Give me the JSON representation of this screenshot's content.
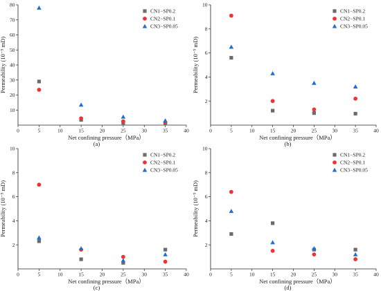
{
  "chart_data": [
    {
      "type": "scatter",
      "panel_label": "(a)",
      "xlabel": "Net confining pressure（MPa）",
      "ylabel": "Permeability (10⁻⁵ mD)",
      "xlim": [
        0,
        40
      ],
      "ylim": [
        0,
        80
      ],
      "xticks": [
        0,
        5,
        10,
        15,
        20,
        25,
        30,
        35,
        40
      ],
      "yticks": [
        10,
        20,
        30,
        40,
        50,
        60,
        70,
        80
      ],
      "legend_position": "top-right",
      "series": [
        {
          "name": "CN1−SP0.2",
          "color": "#6b6b6b",
          "marker": "square",
          "x": [
            5,
            15,
            25,
            35
          ],
          "y": [
            29,
            3.5,
            1.5,
            1.0
          ]
        },
        {
          "name": "CN2−SP0.1",
          "color": "#ee3333",
          "marker": "circle",
          "x": [
            5,
            15,
            25,
            35
          ],
          "y": [
            23.5,
            4.5,
            2.5,
            1.8
          ]
        },
        {
          "name": "CN3−SP0.05",
          "color": "#1f6fd1",
          "marker": "triangle",
          "x": [
            5,
            15,
            25,
            35
          ],
          "y": [
            78,
            13.5,
            5.5,
            3.0
          ]
        }
      ]
    },
    {
      "type": "scatter",
      "panel_label": "(b)",
      "xlabel": "Net confining pressure（MPa）",
      "ylabel": "Permeability (10⁻⁵ mD)",
      "xlim": [
        0,
        40
      ],
      "ylim": [
        0,
        10
      ],
      "xticks": [
        0,
        5,
        10,
        15,
        20,
        25,
        30,
        35,
        40
      ],
      "yticks": [
        2,
        4,
        6,
        8,
        10
      ],
      "legend_position": "top-right",
      "series": [
        {
          "name": "CN1−SP0.2",
          "color": "#6b6b6b",
          "marker": "square",
          "x": [
            5,
            15,
            25,
            35
          ],
          "y": [
            5.6,
            1.2,
            1.0,
            0.95
          ]
        },
        {
          "name": "CN2−SP0.1",
          "color": "#ee3333",
          "marker": "circle",
          "x": [
            5,
            15,
            25,
            35
          ],
          "y": [
            9.1,
            2.0,
            1.3,
            2.2
          ]
        },
        {
          "name": "CN3−SP0.05",
          "color": "#1f6fd1",
          "marker": "triangle",
          "x": [
            5,
            15,
            25,
            35
          ],
          "y": [
            6.5,
            4.3,
            3.5,
            3.2
          ]
        }
      ]
    },
    {
      "type": "scatter",
      "panel_label": "(c)",
      "xlabel": "Net confining pressure（MPa）",
      "ylabel": "Permeability (10⁻⁵ mD)",
      "xlim": [
        0,
        40
      ],
      "ylim": [
        0,
        10
      ],
      "xticks": [
        0,
        5,
        10,
        15,
        20,
        25,
        30,
        35,
        40
      ],
      "yticks": [
        2,
        4,
        6,
        8,
        10
      ],
      "legend_position": "top-right",
      "series": [
        {
          "name": "CN1−SP0.2",
          "color": "#6b6b6b",
          "marker": "square",
          "x": [
            5,
            15,
            25,
            35
          ],
          "y": [
            2.3,
            0.8,
            0.5,
            1.6
          ]
        },
        {
          "name": "CN2−SP0.1",
          "color": "#ee3333",
          "marker": "circle",
          "x": [
            5,
            15,
            25,
            35
          ],
          "y": [
            7.0,
            1.6,
            1.0,
            0.6
          ]
        },
        {
          "name": "CN3−SP0.05",
          "color": "#1f6fd1",
          "marker": "triangle",
          "x": [
            5,
            15,
            25,
            35
          ],
          "y": [
            2.6,
            1.7,
            0.7,
            1.2
          ]
        }
      ]
    },
    {
      "type": "scatter",
      "panel_label": "(d)",
      "xlabel": "Net confining pressure（MPa）",
      "ylabel": "Permeability (10⁻⁵ mD)",
      "xlim": [
        0,
        40
      ],
      "ylim": [
        0,
        10
      ],
      "xticks": [
        0,
        5,
        10,
        15,
        20,
        25,
        30,
        35,
        40
      ],
      "yticks": [
        2,
        4,
        6,
        8,
        10
      ],
      "legend_position": "top-right",
      "series": [
        {
          "name": "CN1−SP0.2",
          "color": "#6b6b6b",
          "marker": "square",
          "x": [
            5,
            15,
            25,
            35
          ],
          "y": [
            2.9,
            3.8,
            1.6,
            1.6
          ]
        },
        {
          "name": "CN2−SP0.1",
          "color": "#ee3333",
          "marker": "circle",
          "x": [
            5,
            15,
            25,
            35
          ],
          "y": [
            6.4,
            1.5,
            1.2,
            0.8
          ]
        },
        {
          "name": "CN3−SP0.05",
          "color": "#1f6fd1",
          "marker": "triangle",
          "x": [
            5,
            15,
            25,
            35
          ],
          "y": [
            4.8,
            2.2,
            1.7,
            1.2
          ]
        }
      ]
    }
  ]
}
